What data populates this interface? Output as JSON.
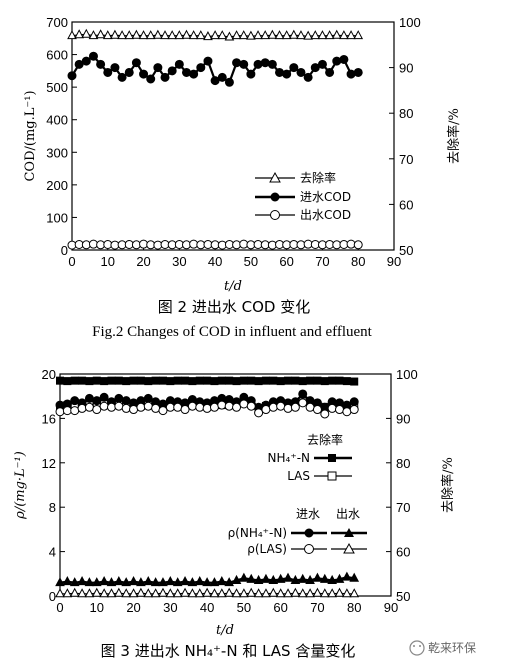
{
  "chart_data": [
    {
      "type": "line",
      "xlabel": "t/d",
      "ylabel_left": "COD/(mg.L⁻¹)",
      "ylabel_right": "去除率/%",
      "xlim": [
        0,
        90
      ],
      "ylim_left": [
        0,
        700
      ],
      "ylim_right": [
        50,
        100
      ],
      "x_ticks": [
        "0",
        "10",
        "20",
        "30",
        "40",
        "50",
        "60",
        "70",
        "80",
        "90"
      ],
      "y_left_ticks": [
        "0",
        "100",
        "200",
        "300",
        "400",
        "500",
        "600",
        "700"
      ],
      "y_right_ticks": [
        "50",
        "60",
        "70",
        "80",
        "90",
        "100"
      ],
      "legend_position": "lower-right",
      "caption": "图 2 进出水 COD 变化",
      "caption_en": "Fig.2 Changes of COD in influent and effluent",
      "series": [
        {
          "name": "去除率",
          "axis": "right",
          "marker": "open-triangle",
          "x": [
            0,
            2,
            4,
            6,
            8,
            10,
            12,
            14,
            16,
            18,
            20,
            22,
            24,
            26,
            28,
            30,
            32,
            34,
            36,
            38,
            40,
            42,
            44,
            46,
            48,
            50,
            52,
            54,
            56,
            58,
            60,
            62,
            64,
            66,
            68,
            70,
            72,
            74,
            76,
            78,
            80
          ],
          "values": [
            97,
            97.2,
            97.3,
            97,
            97.2,
            97,
            97.1,
            97,
            97,
            97.1,
            97,
            97,
            97.1,
            97,
            97,
            97,
            97.1,
            97,
            97,
            96.8,
            97,
            97,
            96.7,
            97,
            97,
            96.9,
            97,
            97,
            97.1,
            97,
            97,
            97.1,
            97,
            96.9,
            97,
            97,
            97,
            97.1,
            97,
            97,
            97
          ]
        },
        {
          "name": "进水COD",
          "axis": "left",
          "marker": "filled-circle",
          "x": [
            0,
            2,
            4,
            6,
            8,
            10,
            12,
            14,
            16,
            18,
            20,
            22,
            24,
            26,
            28,
            30,
            32,
            34,
            36,
            38,
            40,
            42,
            44,
            46,
            48,
            50,
            52,
            54,
            56,
            58,
            60,
            62,
            64,
            66,
            68,
            70,
            72,
            74,
            76,
            78,
            80
          ],
          "values": [
            535,
            570,
            580,
            595,
            570,
            545,
            560,
            530,
            545,
            575,
            540,
            525,
            560,
            530,
            550,
            570,
            545,
            540,
            560,
            580,
            520,
            530,
            515,
            575,
            570,
            540,
            570,
            575,
            570,
            545,
            540,
            560,
            545,
            530,
            560,
            570,
            545,
            580,
            585,
            540,
            545
          ]
        },
        {
          "name": "出水COD",
          "axis": "left",
          "marker": "open-circle",
          "x": [
            0,
            2,
            4,
            6,
            8,
            10,
            12,
            14,
            16,
            18,
            20,
            22,
            24,
            26,
            28,
            30,
            32,
            34,
            36,
            38,
            40,
            42,
            44,
            46,
            48,
            50,
            52,
            54,
            56,
            58,
            60,
            62,
            64,
            66,
            68,
            70,
            72,
            74,
            76,
            78,
            80
          ],
          "values": [
            15,
            17,
            16,
            18,
            16,
            17,
            15,
            16,
            17,
            16,
            18,
            16,
            15,
            17,
            16,
            17,
            16,
            18,
            16,
            17,
            16,
            15,
            17,
            16,
            18,
            16,
            17,
            16,
            15,
            17,
            16,
            17,
            16,
            18,
            17,
            16,
            17,
            16,
            17,
            18,
            16
          ]
        }
      ]
    },
    {
      "type": "line",
      "xlabel": "t/d",
      "ylabel_left": "ρ/(mg·L⁻¹)",
      "ylabel_right": "去除率/%",
      "xlim": [
        0,
        90
      ],
      "ylim_left": [
        0,
        20
      ],
      "ylim_right": [
        50,
        100
      ],
      "x_ticks": [
        "0",
        "10",
        "20",
        "30",
        "40",
        "50",
        "60",
        "70",
        "80",
        "90"
      ],
      "y_left_ticks": [
        "0",
        "4",
        "8",
        "12",
        "16",
        "20"
      ],
      "y_right_ticks": [
        "50",
        "60",
        "70",
        "80",
        "90",
        "100"
      ],
      "legend_position": "right",
      "legend_group_removal": "去除率",
      "legend_group_influent": "进水",
      "legend_group_effluent": "出水",
      "caption": "图 3 进出水 NH₄⁺-N 和 LAS 含量变化",
      "watermark": "乾来环保",
      "series": [
        {
          "name": "NH₄⁺-N",
          "group": "去除率",
          "axis": "right",
          "marker": "filled-square",
          "x": [
            0,
            2,
            4,
            6,
            8,
            10,
            12,
            14,
            16,
            18,
            20,
            22,
            24,
            26,
            28,
            30,
            32,
            34,
            36,
            38,
            40,
            42,
            44,
            46,
            48,
            50,
            52,
            54,
            56,
            58,
            60,
            62,
            64,
            66,
            68,
            70,
            72,
            74,
            76,
            78,
            80
          ],
          "values": [
            98.5,
            98.4,
            98.5,
            98.5,
            98.4,
            98.5,
            98.4,
            98.5,
            98.5,
            98.4,
            98.5,
            98.5,
            98.4,
            98.5,
            98.5,
            98.4,
            98.5,
            98.5,
            98.4,
            98.5,
            98.5,
            98.4,
            98.5,
            98.5,
            98.4,
            98.5,
            98.5,
            98.4,
            98.5,
            98.5,
            98.4,
            98.5,
            98.5,
            98.4,
            98.5,
            98.5,
            98.4,
            98.5,
            98.5,
            98.4,
            98.3
          ]
        },
        {
          "name": "LAS",
          "group": "去除率",
          "axis": "right",
          "marker": "open-square",
          "x": [
            0,
            2,
            4,
            6,
            8,
            10,
            12,
            14,
            16,
            18,
            20,
            22,
            24,
            26,
            28,
            30,
            32,
            34,
            36,
            38,
            40,
            42,
            44,
            46,
            48,
            50,
            52,
            54,
            56,
            58,
            60,
            62,
            64,
            66,
            68,
            70,
            72,
            74,
            76,
            78,
            80
          ],
          "values": [
            92.5,
            93,
            92.8,
            93.2,
            93,
            93.5,
            93.2,
            93,
            93.5,
            93.2,
            93,
            92.8,
            93.2,
            93,
            92.5,
            93.2,
            93,
            93,
            93.2,
            93,
            93.1,
            93.2,
            93,
            93.3,
            93.5,
            93.8,
            93.4,
            92.3,
            92.8,
            93.2,
            93.5,
            93.1,
            93.4,
            93.8,
            93.2,
            93,
            92.6,
            93.2,
            93,
            92.2,
            92.8
          ]
        },
        {
          "name": "ρ(NH₄⁺-N)",
          "group": "进水",
          "axis": "left",
          "marker": "filled-circle",
          "x": [
            0,
            2,
            4,
            6,
            8,
            10,
            12,
            14,
            16,
            18,
            20,
            22,
            24,
            26,
            28,
            30,
            32,
            34,
            36,
            38,
            40,
            42,
            44,
            46,
            48,
            50,
            52,
            54,
            56,
            58,
            60,
            62,
            64,
            66,
            68,
            70,
            72,
            74,
            76,
            78,
            80
          ],
          "values": [
            17.2,
            17.3,
            17.6,
            17.4,
            17.8,
            17.6,
            17.9,
            17.5,
            17.8,
            17.6,
            17.4,
            17.6,
            17.8,
            17.5,
            17.3,
            17.6,
            17.5,
            17.4,
            17.7,
            17.5,
            17.4,
            17.6,
            17.8,
            17.7,
            17.5,
            17.9,
            17.6,
            17.0,
            17.2,
            17.5,
            17.6,
            17.4,
            17.5,
            18.2,
            17.6,
            17.4,
            17.0,
            17.5,
            17.4,
            17.2,
            17.5
          ]
        },
        {
          "name": "ρ(LAS)",
          "group": "进水",
          "axis": "left",
          "marker": "open-circle",
          "x": [
            0,
            2,
            4,
            6,
            8,
            10,
            12,
            14,
            16,
            18,
            20,
            22,
            24,
            26,
            28,
            30,
            32,
            34,
            36,
            38,
            40,
            42,
            44,
            46,
            48,
            50,
            52,
            54,
            56,
            58,
            60,
            62,
            64,
            66,
            68,
            70,
            72,
            74,
            76,
            78,
            80
          ],
          "values": [
            16.6,
            16.7,
            16.7,
            16.9,
            17.0,
            16.8,
            17.1,
            17.0,
            17.1,
            16.9,
            16.8,
            17.0,
            17.1,
            16.9,
            16.7,
            17.0,
            17.0,
            16.8,
            17.1,
            17.0,
            16.9,
            17.0,
            17.2,
            17.1,
            17.0,
            17.3,
            17.1,
            16.5,
            16.8,
            17.0,
            17.1,
            16.9,
            17.0,
            17.4,
            17.0,
            16.8,
            16.4,
            16.9,
            16.8,
            16.6,
            16.8
          ]
        },
        {
          "name": "ρ(NH₄⁺-N)",
          "group": "出水",
          "axis": "left",
          "marker": "filled-triangle",
          "x": [
            0,
            2,
            4,
            6,
            8,
            10,
            12,
            14,
            16,
            18,
            20,
            22,
            24,
            26,
            28,
            30,
            32,
            34,
            36,
            38,
            40,
            42,
            44,
            46,
            48,
            50,
            52,
            54,
            56,
            58,
            60,
            62,
            64,
            66,
            68,
            70,
            72,
            74,
            76,
            78,
            80
          ],
          "values": [
            1.2,
            1.3,
            1.2,
            1.3,
            1.2,
            1.2,
            1.3,
            1.2,
            1.3,
            1.2,
            1.3,
            1.2,
            1.3,
            1.2,
            1.2,
            1.3,
            1.2,
            1.3,
            1.2,
            1.3,
            1.2,
            1.2,
            1.3,
            1.2,
            1.4,
            1.6,
            1.5,
            1.4,
            1.5,
            1.4,
            1.5,
            1.6,
            1.4,
            1.5,
            1.4,
            1.6,
            1.5,
            1.4,
            1.5,
            1.7,
            1.6
          ]
        },
        {
          "name": "ρ(LAS)",
          "group": "出水",
          "axis": "left",
          "marker": "open-triangle",
          "x": [
            0,
            2,
            4,
            6,
            8,
            10,
            12,
            14,
            16,
            18,
            20,
            22,
            24,
            26,
            28,
            30,
            32,
            34,
            36,
            38,
            40,
            42,
            44,
            46,
            48,
            50,
            52,
            54,
            56,
            58,
            60,
            62,
            64,
            66,
            68,
            70,
            72,
            74,
            76,
            78,
            80
          ],
          "values": [
            0.2,
            0.2,
            0.25,
            0.2,
            0.2,
            0.25,
            0.2,
            0.2,
            0.25,
            0.2,
            0.2,
            0.25,
            0.2,
            0.2,
            0.25,
            0.2,
            0.2,
            0.25,
            0.2,
            0.2,
            0.25,
            0.2,
            0.2,
            0.25,
            0.2,
            0.2,
            0.25,
            0.2,
            0.2,
            0.25,
            0.2,
            0.2,
            0.25,
            0.2,
            0.2,
            0.25,
            0.2,
            0.2,
            0.25,
            0.2,
            0.2
          ]
        }
      ]
    }
  ]
}
